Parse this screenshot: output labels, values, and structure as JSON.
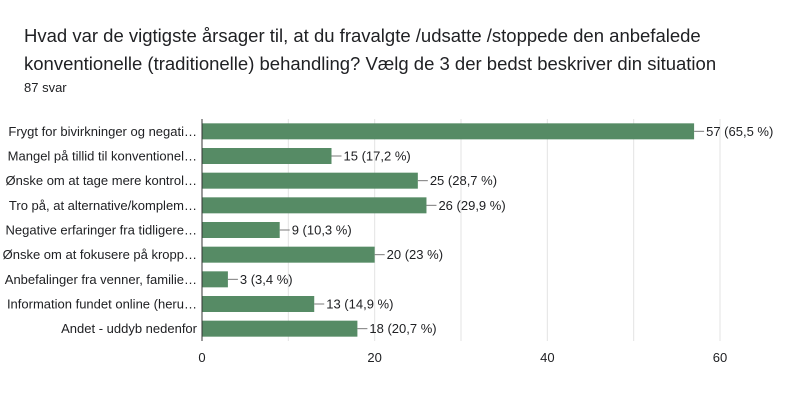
{
  "header": {
    "title": "Hvad var de vigtigste årsager til, at du fravalgte /udsatte /stoppede den anbefalede konventionelle (traditionelle) behandling? Vælg de 3 der bedst beskriver din situation",
    "response_count": "87 svar"
  },
  "colors": {
    "bar": "#568b65",
    "grid": "#e3e3e3",
    "axis": "#333333"
  },
  "chart_data": {
    "type": "bar",
    "orientation": "horizontal",
    "categories": [
      "Frygt for bivirkninger og negati…",
      "Mangel på tillid til konventionel…",
      "Ønske om at tage mere kontrol…",
      "Tro på, at alternative/komplem…",
      "Negative erfaringer fra tidligere…",
      "Ønske om at fokusere på kropp…",
      "Anbefalinger fra venner, familie…",
      "Information fundet online (heru…",
      "Andet - uddyb nedenfor"
    ],
    "values": [
      57,
      15,
      25,
      26,
      9,
      20,
      3,
      13,
      18
    ],
    "data_labels": [
      "57 (65,5 %)",
      "15 (17,2 %)",
      "25 (28,7 %)",
      "26 (29,9 %)",
      "9 (10,3 %)",
      "20 (23 %)",
      "3 (3,4 %)",
      "13 (14,9 %)",
      "18 (20,7 %)"
    ],
    "xlim": [
      0,
      60
    ],
    "x_ticks": [
      "0",
      "20",
      "40",
      "60"
    ],
    "x_tick_values": [
      0,
      20,
      40,
      60
    ],
    "grid": true,
    "legend": "none"
  }
}
